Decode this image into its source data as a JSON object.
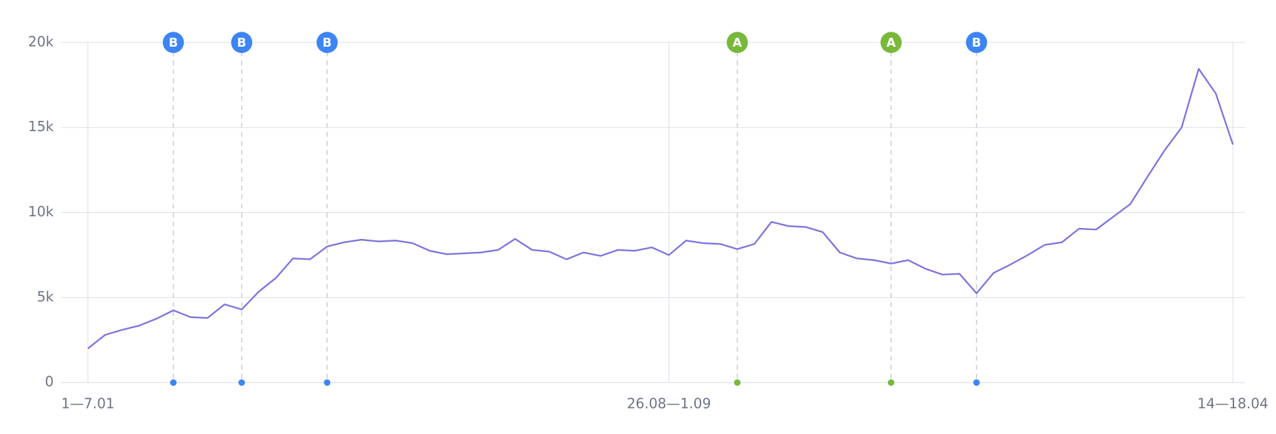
{
  "chart_data": {
    "type": "line",
    "categories": [
      "1—7.01",
      null,
      null,
      null,
      null,
      null,
      null,
      null,
      null,
      null,
      null,
      null,
      null,
      null,
      null,
      null,
      null,
      null,
      null,
      null,
      null,
      null,
      null,
      null,
      null,
      null,
      null,
      null,
      null,
      null,
      null,
      null,
      null,
      null,
      "26.08—1.09",
      null,
      null,
      null,
      null,
      null,
      null,
      null,
      null,
      null,
      null,
      null,
      null,
      null,
      null,
      null,
      null,
      null,
      null,
      null,
      null,
      null,
      null,
      null,
      null,
      null,
      null,
      null,
      null,
      null,
      null,
      null,
      null,
      "14—18.04"
    ],
    "series": [
      {
        "color": "#7b74e0",
        "values": [
          2000,
          2800,
          3100,
          3350,
          3750,
          4250,
          3850,
          3800,
          4600,
          4300,
          5350,
          6150,
          7300,
          7250,
          8000,
          8250,
          8400,
          8300,
          8350,
          8200,
          7750,
          7550,
          7600,
          7650,
          7800,
          8450,
          7800,
          7700,
          7250,
          7650,
          7450,
          7800,
          7750,
          7950,
          7500,
          8350,
          8200,
          8150,
          7850,
          8150,
          9450,
          9200,
          9150,
          8850,
          7650,
          7300,
          7200,
          7000,
          7200,
          6700,
          6350,
          6400,
          5250,
          6450,
          6950,
          7500,
          8100,
          8250,
          9050,
          9000,
          9750,
          10500,
          12100,
          13650,
          15000,
          18450,
          17000,
          14000
        ]
      }
    ],
    "ylim": [
      0,
      20000
    ],
    "yticks": [
      0,
      {
        "value": 5000,
        "label": "5k"
      },
      {
        "value": 10000,
        "label": "10k"
      },
      {
        "value": 15000,
        "label": "15k"
      },
      {
        "value": 20000,
        "label": "20k"
      }
    ],
    "grid": true,
    "annotations": [
      {
        "label": "B",
        "at": 5,
        "color": "#3d84f5"
      },
      {
        "label": "B",
        "at": 9,
        "color": "#3d84f5"
      },
      {
        "label": "B",
        "at": 14,
        "color": "#3d84f5"
      },
      {
        "label": "A",
        "at": 38,
        "color": "#78b83a"
      },
      {
        "label": "A",
        "at": 47,
        "color": "#78b83a"
      },
      {
        "label": "B",
        "at": 52,
        "color": "#3d84f5"
      }
    ]
  }
}
